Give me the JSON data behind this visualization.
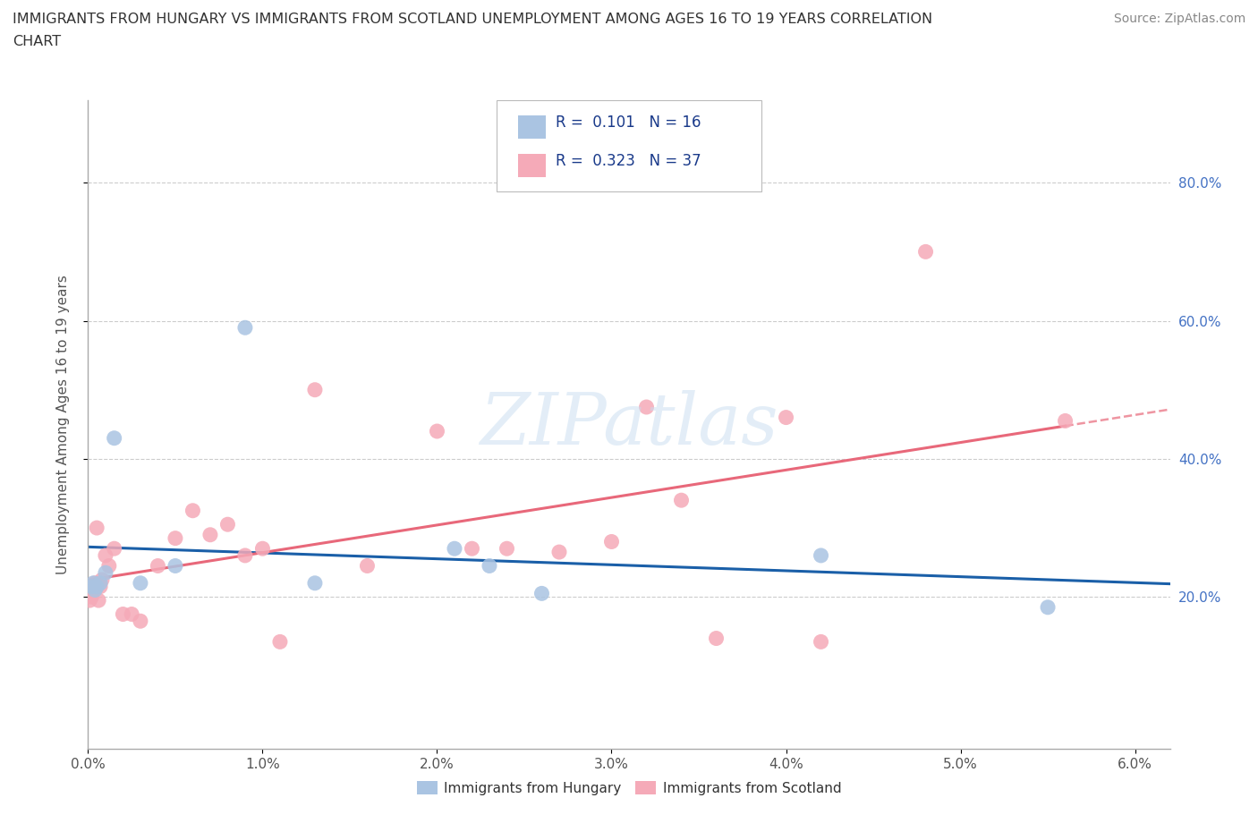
{
  "title_line1": "IMMIGRANTS FROM HUNGARY VS IMMIGRANTS FROM SCOTLAND UNEMPLOYMENT AMONG AGES 16 TO 19 YEARS CORRELATION",
  "title_line2": "CHART",
  "source": "Source: ZipAtlas.com",
  "ylabel": "Unemployment Among Ages 16 to 19 years",
  "xlim": [
    0.0,
    0.062
  ],
  "ylim": [
    -0.02,
    0.92
  ],
  "xticks": [
    0.0,
    0.01,
    0.02,
    0.03,
    0.04,
    0.05,
    0.06
  ],
  "xtick_labels": [
    "0.0%",
    "1.0%",
    "2.0%",
    "3.0%",
    "4.0%",
    "5.0%",
    "6.0%"
  ],
  "ytick_labels": [
    "20.0%",
    "40.0%",
    "60.0%",
    "80.0%"
  ],
  "ytick_positions": [
    0.2,
    0.4,
    0.6,
    0.8
  ],
  "hungary_color": "#aac4e2",
  "scotland_color": "#f5aab8",
  "hungary_line_color": "#1a5fa8",
  "scotland_line_color": "#e8687a",
  "r_hungary": 0.101,
  "n_hungary": 16,
  "r_scotland": 0.323,
  "n_scotland": 37,
  "hungary_x": [
    0.0002,
    0.0003,
    0.0004,
    0.0005,
    0.0007,
    0.001,
    0.0015,
    0.003,
    0.005,
    0.009,
    0.013,
    0.021,
    0.023,
    0.026,
    0.042,
    0.055
  ],
  "hungary_y": [
    0.215,
    0.22,
    0.21,
    0.215,
    0.22,
    0.235,
    0.43,
    0.22,
    0.245,
    0.59,
    0.22,
    0.27,
    0.245,
    0.205,
    0.26,
    0.185
  ],
  "scotland_x": [
    0.0001,
    0.0002,
    0.0003,
    0.0004,
    0.0005,
    0.0005,
    0.0006,
    0.0007,
    0.0008,
    0.001,
    0.0012,
    0.0015,
    0.002,
    0.0025,
    0.003,
    0.004,
    0.005,
    0.006,
    0.007,
    0.008,
    0.009,
    0.01,
    0.011,
    0.013,
    0.016,
    0.02,
    0.022,
    0.024,
    0.027,
    0.03,
    0.032,
    0.034,
    0.036,
    0.04,
    0.042,
    0.048,
    0.056
  ],
  "scotland_y": [
    0.195,
    0.2,
    0.21,
    0.22,
    0.215,
    0.3,
    0.195,
    0.215,
    0.225,
    0.26,
    0.245,
    0.27,
    0.175,
    0.175,
    0.165,
    0.245,
    0.285,
    0.325,
    0.29,
    0.305,
    0.26,
    0.27,
    0.135,
    0.5,
    0.245,
    0.44,
    0.27,
    0.27,
    0.265,
    0.28,
    0.475,
    0.34,
    0.14,
    0.46,
    0.135,
    0.7,
    0.455
  ],
  "watermark": "ZIPatlas",
  "legend_label_hungary": "Immigrants from Hungary",
  "legend_label_scotland": "Immigrants from Scotland"
}
